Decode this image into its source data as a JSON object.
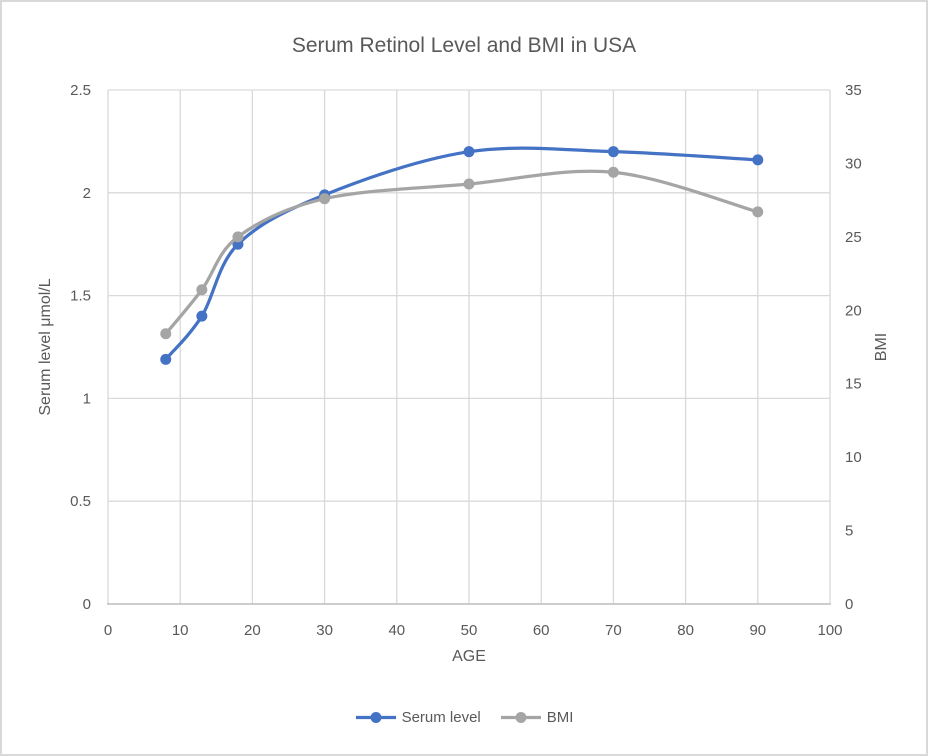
{
  "chart": {
    "title": "Serum Retinol Level and BMI in USA",
    "x_axis": {
      "label": "AGE",
      "ticks": [
        0,
        10,
        20,
        30,
        40,
        50,
        60,
        70,
        80,
        90,
        100
      ]
    },
    "y_left": {
      "label": "Serum level μmol/L",
      "ticks": [
        "0",
        "0.5",
        "1",
        "1.5",
        "2",
        "2.5"
      ]
    },
    "y_right": {
      "label": "BMI",
      "ticks": [
        0,
        5,
        10,
        15,
        20,
        25,
        30,
        35
      ]
    },
    "colors": {
      "serum_series": "#4472C4",
      "bmi_series": "#A5A5A5",
      "grid": "#D9D9D9",
      "axis_line": "#BFBFBF",
      "text": "#595959",
      "background": "#FFFFFF",
      "frame_border": "#D9D9D9"
    }
  },
  "chart_data": {
    "type": "line",
    "title": "Serum Retinol Level and BMI in USA",
    "xlabel": "AGE",
    "ylabel_left": "Serum level μmol/L",
    "ylabel_right": "BMI",
    "x": [
      8,
      13,
      18,
      30,
      50,
      70,
      90
    ],
    "series": [
      {
        "name": "Serum level",
        "axis": "left",
        "color": "#4472C4",
        "values": [
          1.19,
          1.4,
          1.75,
          1.99,
          2.2,
          2.2,
          2.16
        ]
      },
      {
        "name": "BMI",
        "axis": "right",
        "color": "#A5A5A5",
        "values": [
          18.4,
          21.4,
          25.0,
          27.6,
          28.6,
          29.4,
          26.7
        ]
      }
    ],
    "xlim": [
      0,
      100
    ],
    "ylim_left": [
      0,
      2.5
    ],
    "ylim_right": [
      0,
      35
    ],
    "grid": true,
    "smooth": true,
    "marker": "circle",
    "legend_position": "bottom"
  }
}
